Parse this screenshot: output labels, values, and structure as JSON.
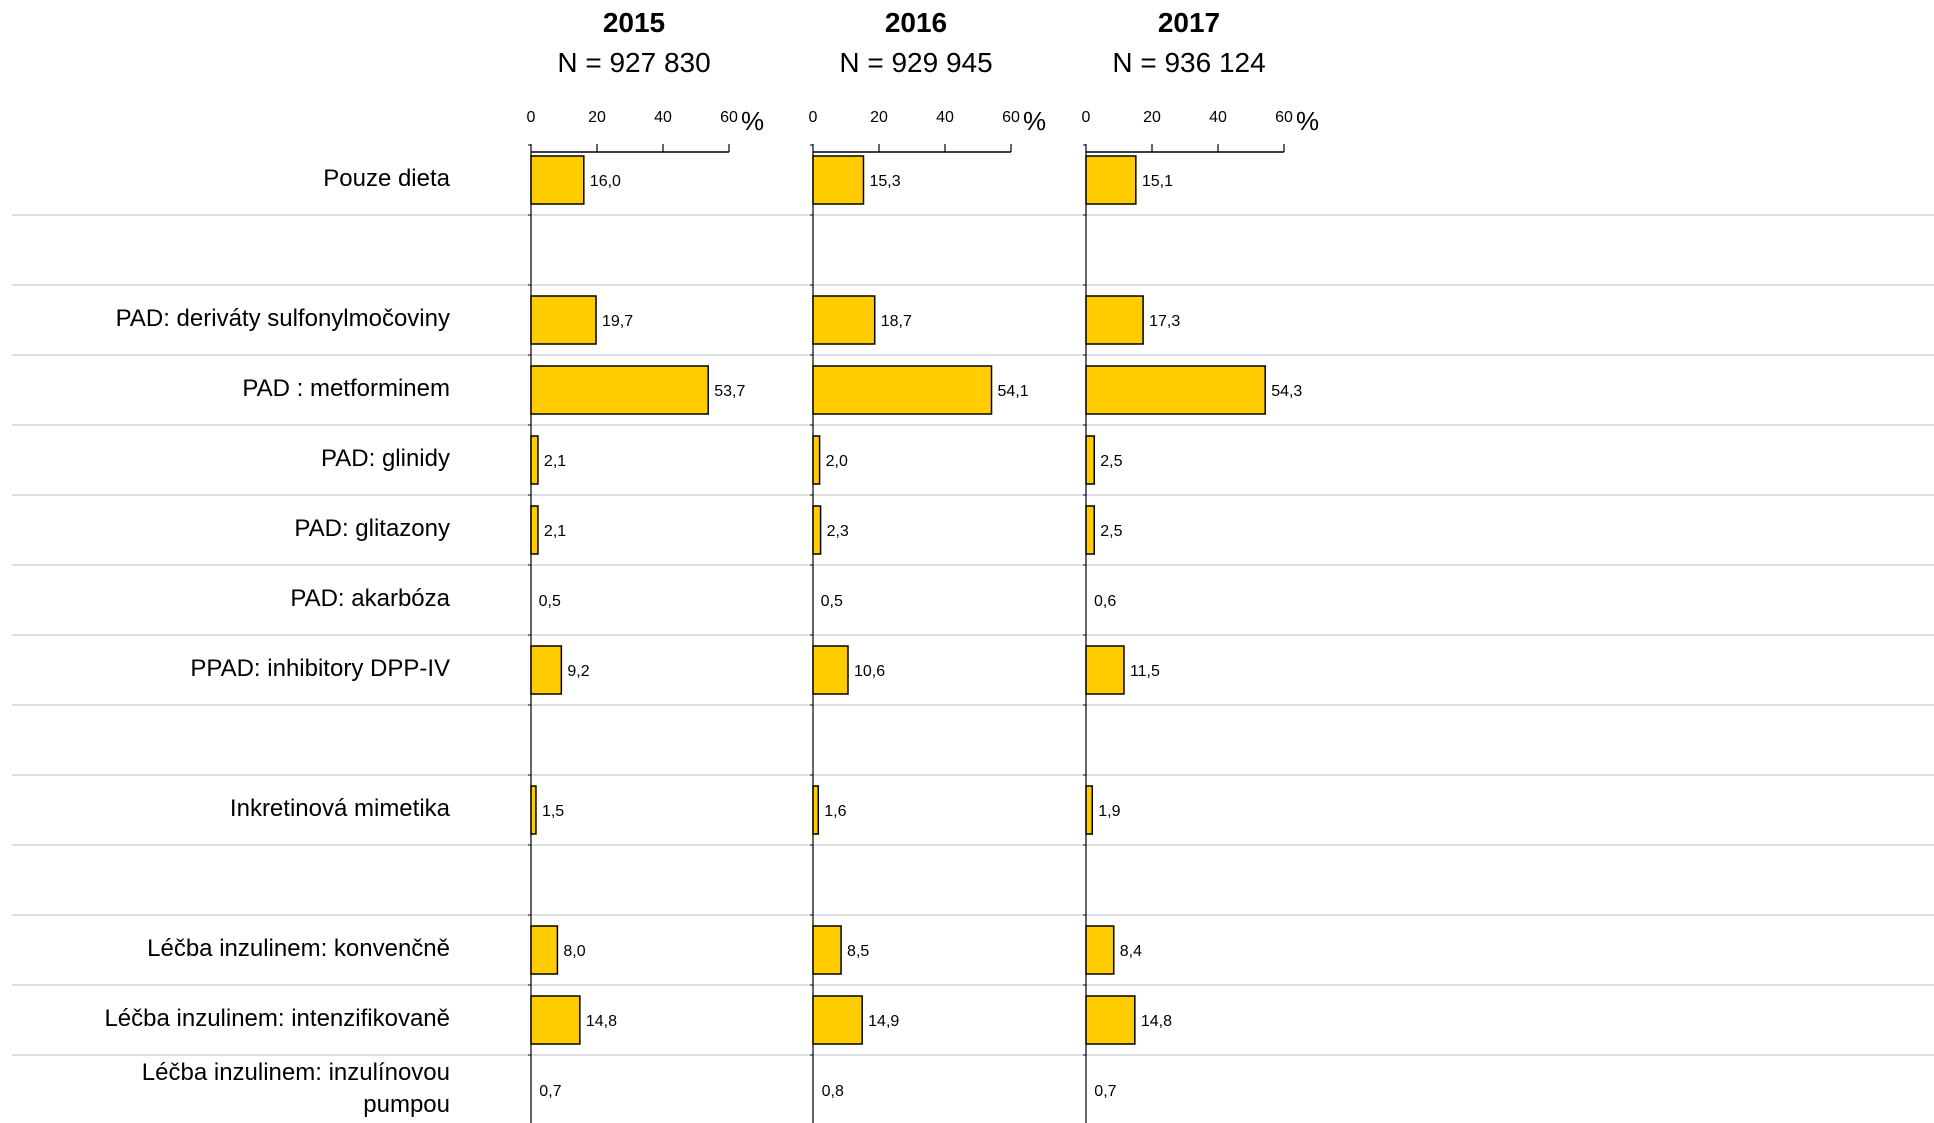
{
  "chart_data": {
    "type": "bar",
    "orientation": "horizontal",
    "categories": [
      "Pouze dieta",
      "",
      "PAD: deriváty sulfonylmočoviny",
      "PAD : metforminem",
      "PAD: glinidy",
      "PAD: glitazony",
      "PAD: akarbóza",
      "PPAD: inhibitory DPP-IV",
      "",
      "Inkretinová mimetika",
      "",
      "Léčba inzulinem: konvenčně",
      "Léčba inzulinem: intenzifikovaně",
      "Léčba inzulinem: inzulínovou pumpou"
    ],
    "unit": "%",
    "xlim": [
      0,
      60
    ],
    "ticks": [
      "0",
      "20",
      "40",
      "60"
    ],
    "series": [
      {
        "name": "2015",
        "subtitle": "N = 927 830",
        "values": [
          16.0,
          null,
          19.7,
          53.7,
          2.1,
          2.1,
          0.5,
          9.2,
          null,
          1.5,
          null,
          8.0,
          14.8,
          0.7
        ],
        "labels": [
          "16,0",
          "",
          "19,7",
          "53,7",
          "2,1",
          "2,1",
          "0,5",
          "9,2",
          "",
          "1,5",
          "",
          "8,0",
          "14,8",
          "0,7"
        ]
      },
      {
        "name": "2016",
        "subtitle": "N = 929 945",
        "values": [
          15.3,
          null,
          18.7,
          54.1,
          2.0,
          2.3,
          0.5,
          10.6,
          null,
          1.6,
          null,
          8.5,
          14.9,
          0.8
        ],
        "labels": [
          "15,3",
          "",
          "18,7",
          "54,1",
          "2,0",
          "2,3",
          "0,5",
          "10,6",
          "",
          "1,6",
          "",
          "8,5",
          "14,9",
          "0,8"
        ]
      },
      {
        "name": "2017",
        "subtitle": "N = 936 124",
        "values": [
          15.1,
          null,
          17.3,
          54.3,
          2.5,
          2.5,
          0.6,
          11.5,
          null,
          1.9,
          null,
          8.4,
          14.8,
          0.7
        ],
        "labels": [
          "15,1",
          "",
          "17,3",
          "54,3",
          "2,5",
          "2,5",
          "0,6",
          "11,5",
          "",
          "1,9",
          "",
          "8,4",
          "14,8",
          "0,7"
        ]
      }
    ],
    "bar_color": "#ffcc00",
    "bar_border_color": "#000000",
    "grid": false,
    "legend": "none"
  }
}
